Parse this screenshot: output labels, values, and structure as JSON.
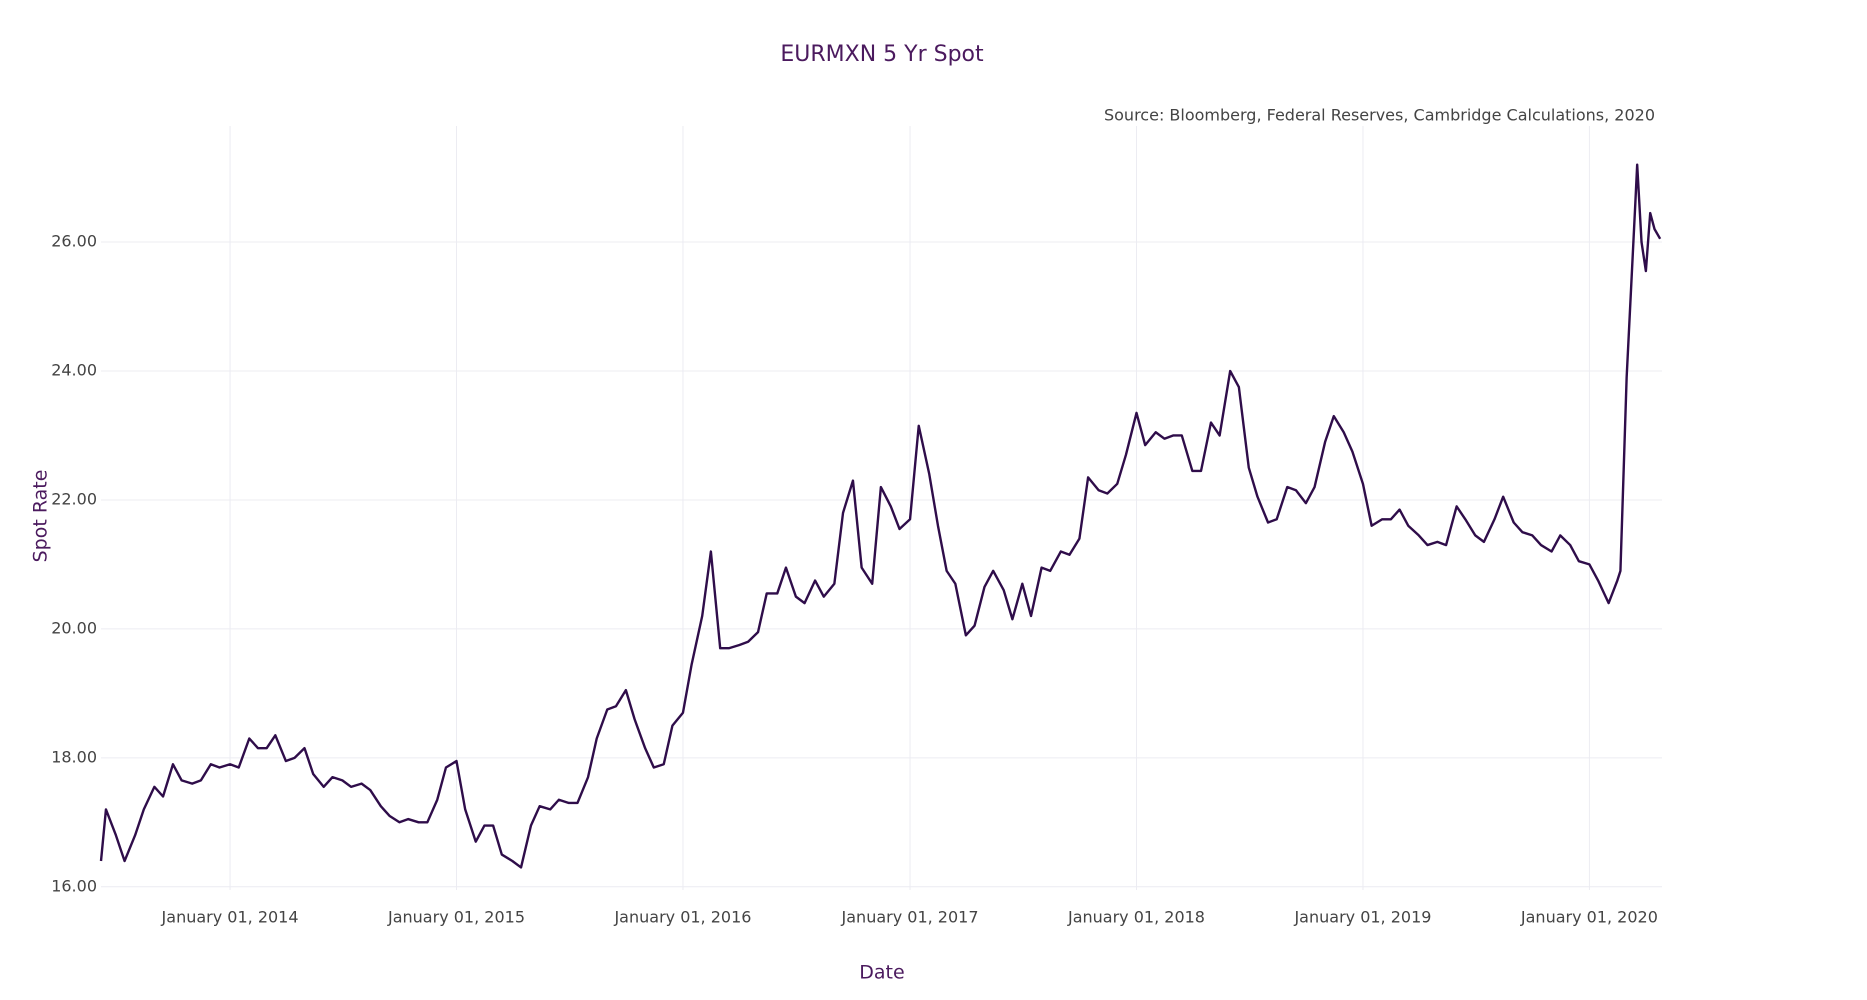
{
  "chart_data": {
    "type": "line",
    "title": "EURMXN 5 Yr Spot",
    "annotation": "Source: Bloomberg, Federal Reserves, Cambridge Calculations, 2020",
    "x_label": "Date",
    "y_label": "Spot Rate",
    "color": "#2f0d4a",
    "grid": true,
    "xlim": [
      "2013-06-07",
      "2020-04-27"
    ],
    "ylim": [
      15.95,
      27.8
    ],
    "xticks": [
      {
        "value": "2014-01-01",
        "label": "January 01, 2014"
      },
      {
        "value": "2015-01-01",
        "label": "January 01, 2015"
      },
      {
        "value": "2016-01-01",
        "label": "January 01, 2016"
      },
      {
        "value": "2017-01-01",
        "label": "January 01, 2017"
      },
      {
        "value": "2018-01-01",
        "label": "January 01, 2018"
      },
      {
        "value": "2019-01-01",
        "label": "January 01, 2019"
      },
      {
        "value": "2020-01-01",
        "label": "January 01, 2020"
      }
    ],
    "yticks": [
      {
        "value": 16,
        "label": "16.00"
      },
      {
        "value": 18,
        "label": "18.00"
      },
      {
        "value": 20,
        "label": "20.00"
      },
      {
        "value": 22,
        "label": "22.00"
      },
      {
        "value": 24,
        "label": "24.00"
      },
      {
        "value": 26,
        "label": "26.00"
      }
    ],
    "x": [
      "2013-06-07",
      "2013-06-15",
      "2013-07-01",
      "2013-07-15",
      "2013-08-01",
      "2013-08-15",
      "2013-09-01",
      "2013-09-15",
      "2013-10-01",
      "2013-10-15",
      "2013-11-01",
      "2013-11-15",
      "2013-12-01",
      "2013-12-15",
      "2014-01-01",
      "2014-01-15",
      "2014-02-01",
      "2014-02-15",
      "2014-03-01",
      "2014-03-15",
      "2014-04-01",
      "2014-04-15",
      "2014-05-01",
      "2014-05-15",
      "2014-06-01",
      "2014-06-15",
      "2014-07-01",
      "2014-07-15",
      "2014-08-01",
      "2014-08-15",
      "2014-09-01",
      "2014-09-15",
      "2014-10-01",
      "2014-10-15",
      "2014-11-01",
      "2014-11-15",
      "2014-12-01",
      "2014-12-15",
      "2015-01-01",
      "2015-01-15",
      "2015-02-01",
      "2015-02-15",
      "2015-03-01",
      "2015-03-15",
      "2015-04-01",
      "2015-04-15",
      "2015-05-01",
      "2015-05-15",
      "2015-06-01",
      "2015-06-15",
      "2015-07-01",
      "2015-07-15",
      "2015-08-01",
      "2015-08-15",
      "2015-09-01",
      "2015-09-15",
      "2015-10-01",
      "2015-10-15",
      "2015-11-01",
      "2015-11-15",
      "2015-12-01",
      "2015-12-15",
      "2016-01-01",
      "2016-01-15",
      "2016-02-01",
      "2016-02-15",
      "2016-03-01",
      "2016-03-15",
      "2016-04-01",
      "2016-04-15",
      "2016-05-01",
      "2016-05-15",
      "2016-06-01",
      "2016-06-15",
      "2016-07-01",
      "2016-07-15",
      "2016-08-01",
      "2016-08-15",
      "2016-09-01",
      "2016-09-15",
      "2016-10-01",
      "2016-10-15",
      "2016-11-01",
      "2016-11-15",
      "2016-12-01",
      "2016-12-15",
      "2017-01-01",
      "2017-01-15",
      "2017-02-01",
      "2017-02-15",
      "2017-03-01",
      "2017-03-15",
      "2017-04-01",
      "2017-04-15",
      "2017-05-01",
      "2017-05-15",
      "2017-06-01",
      "2017-06-15",
      "2017-07-01",
      "2017-07-15",
      "2017-08-01",
      "2017-08-15",
      "2017-09-01",
      "2017-09-15",
      "2017-10-01",
      "2017-10-15",
      "2017-11-01",
      "2017-11-15",
      "2017-12-01",
      "2017-12-15",
      "2018-01-01",
      "2018-01-15",
      "2018-02-01",
      "2018-02-15",
      "2018-03-01",
      "2018-03-15",
      "2018-04-01",
      "2018-04-15",
      "2018-05-01",
      "2018-05-15",
      "2018-06-01",
      "2018-06-15",
      "2018-07-01",
      "2018-07-15",
      "2018-08-01",
      "2018-08-15",
      "2018-09-01",
      "2018-09-15",
      "2018-10-01",
      "2018-10-15",
      "2018-11-01",
      "2018-11-15",
      "2018-12-01",
      "2018-12-15",
      "2019-01-01",
      "2019-01-15",
      "2019-02-01",
      "2019-02-15",
      "2019-03-01",
      "2019-03-15",
      "2019-04-01",
      "2019-04-15",
      "2019-05-01",
      "2019-05-15",
      "2019-06-01",
      "2019-06-15",
      "2019-07-01",
      "2019-07-15",
      "2019-08-01",
      "2019-08-15",
      "2019-09-01",
      "2019-09-15",
      "2019-10-01",
      "2019-10-15",
      "2019-11-01",
      "2019-11-15",
      "2019-12-01",
      "2019-12-15",
      "2020-01-01",
      "2020-01-15",
      "2020-02-01",
      "2020-02-15",
      "2020-02-20",
      "2020-03-01",
      "2020-03-15",
      "2020-03-18",
      "2020-03-25",
      "2020-04-01",
      "2020-04-08",
      "2020-04-15",
      "2020-04-24"
    ],
    "values": [
      16.4,
      17.2,
      16.8,
      16.4,
      16.8,
      17.2,
      17.55,
      17.4,
      17.9,
      17.65,
      17.6,
      17.65,
      17.9,
      17.85,
      17.9,
      17.85,
      18.3,
      18.15,
      18.15,
      18.35,
      17.95,
      18.0,
      18.15,
      17.75,
      17.55,
      17.7,
      17.65,
      17.55,
      17.6,
      17.5,
      17.25,
      17.1,
      17.0,
      17.05,
      17.0,
      17.0,
      17.35,
      17.85,
      17.95,
      17.2,
      16.7,
      16.95,
      16.95,
      16.5,
      16.4,
      16.3,
      16.95,
      17.25,
      17.2,
      17.35,
      17.3,
      17.3,
      17.7,
      18.3,
      18.75,
      18.8,
      19.05,
      18.6,
      18.15,
      17.85,
      17.9,
      18.5,
      18.7,
      19.45,
      20.2,
      21.2,
      19.7,
      19.7,
      19.75,
      19.8,
      19.95,
      20.55,
      20.55,
      20.95,
      20.5,
      20.4,
      20.75,
      20.5,
      20.7,
      21.8,
      22.3,
      20.95,
      20.7,
      22.2,
      21.9,
      21.55,
      21.7,
      23.15,
      22.4,
      21.6,
      20.9,
      20.7,
      19.9,
      20.05,
      20.65,
      20.9,
      20.6,
      20.15,
      20.7,
      20.2,
      20.95,
      20.9,
      21.2,
      21.15,
      21.4,
      22.35,
      22.15,
      22.1,
      22.25,
      22.7,
      23.35,
      22.85,
      23.05,
      22.95,
      23.0,
      23.0,
      22.45,
      22.45,
      23.2,
      23.0,
      24.0,
      23.75,
      22.5,
      22.05,
      21.65,
      21.7,
      22.2,
      22.15,
      21.95,
      22.2,
      22.9,
      23.3,
      23.05,
      22.75,
      22.25,
      21.6,
      21.7,
      21.7,
      21.85,
      21.6,
      21.45,
      21.3,
      21.35,
      21.3,
      21.9,
      21.7,
      21.45,
      21.35,
      21.7,
      22.05,
      21.65,
      21.5,
      21.45,
      21.3,
      21.2,
      21.45,
      21.3,
      21.05,
      21.0,
      20.75,
      20.4,
      20.75,
      20.9,
      23.9,
      26.6,
      27.2,
      26.0,
      25.55,
      26.45,
      26.2,
      26.05
    ]
  }
}
